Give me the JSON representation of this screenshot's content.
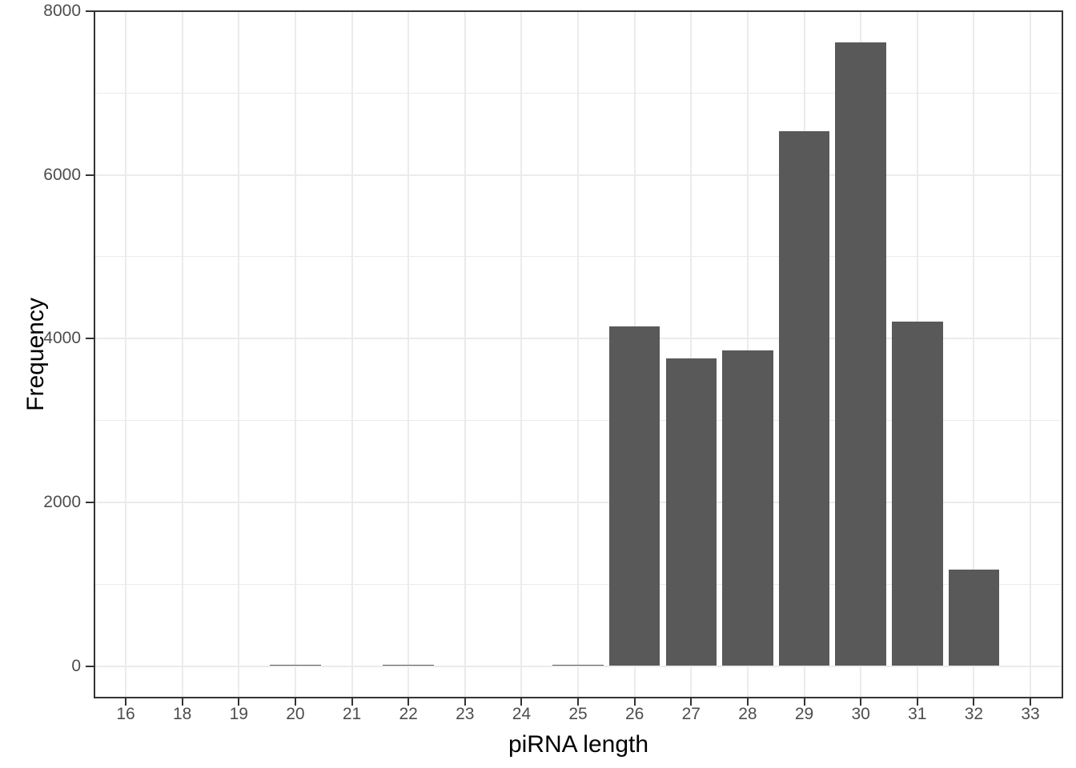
{
  "chart_data": {
    "type": "bar",
    "title": "",
    "xlabel": "piRNA length",
    "ylabel": "Frequency",
    "categories": [
      "16",
      "18",
      "19",
      "20",
      "21",
      "22",
      "23",
      "24",
      "25",
      "26",
      "27",
      "28",
      "29",
      "30",
      "31",
      "32",
      "33"
    ],
    "values": [
      2,
      2,
      3,
      16,
      3,
      15,
      2,
      3,
      19,
      4150,
      3760,
      3860,
      6530,
      7620,
      4210,
      1180,
      2
    ],
    "x_tick_labels": [
      "16",
      "18",
      "19",
      "20",
      "21",
      "22",
      "23",
      "24",
      "25",
      "26",
      "27",
      "28",
      "29",
      "30",
      "31",
      "32",
      "33"
    ],
    "y_tick_labels": [
      "0",
      "2000",
      "4000",
      "6000",
      "8000"
    ],
    "y_major_ticks": [
      0,
      2000,
      4000,
      6000,
      8000
    ],
    "y_minor_ticks": [
      1000,
      3000,
      5000,
      7000
    ],
    "ylim": [
      0,
      8000
    ],
    "grid": "on",
    "legend": "none",
    "colors": {
      "bar_fill": "#595959",
      "gridline": "#ebebeb",
      "panel_border": "#333333",
      "tick_mark": "#333333",
      "tick_label": "#4d4d4d",
      "axis_title": "#000000",
      "background": "#ffffff"
    }
  }
}
